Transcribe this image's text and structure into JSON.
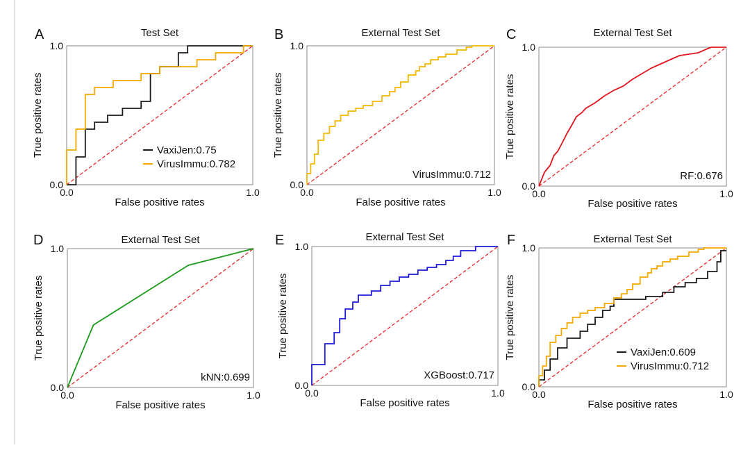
{
  "chart_data": [
    {
      "panel": "A",
      "type": "line",
      "title": "Test Set",
      "xlabel": "False positive rates",
      "ylabel": "True positive rates",
      "xlim": [
        0,
        1
      ],
      "ylim": [
        0,
        1
      ],
      "x_ticks": [
        "0.0",
        "1.0"
      ],
      "y_ticks": [
        "0.0",
        "1.0"
      ],
      "legend_position": "bottom-right",
      "diagonal_color": "#e8262a",
      "series": [
        {
          "name": "VaxiJen:0.75",
          "color": "#1a1a1a",
          "x": [
            0,
            0.05,
            0.05,
            0.1,
            0.1,
            0.15,
            0.15,
            0.22,
            0.22,
            0.3,
            0.3,
            0.4,
            0.4,
            0.45,
            0.45,
            0.5,
            0.5,
            0.6,
            0.6,
            0.6,
            0.65,
            0.65,
            1
          ],
          "y": [
            0,
            0,
            0.2,
            0.2,
            0.4,
            0.4,
            0.45,
            0.45,
            0.5,
            0.5,
            0.55,
            0.55,
            0.6,
            0.6,
            0.8,
            0.8,
            0.85,
            0.85,
            0.9,
            0.95,
            0.95,
            1,
            1
          ]
        },
        {
          "name": "VirusImmu:0.782",
          "color": "#f5a800",
          "x": [
            0,
            0,
            0.05,
            0.05,
            0.1,
            0.1,
            0.15,
            0.15,
            0.25,
            0.25,
            0.4,
            0.4,
            0.5,
            0.5,
            0.7,
            0.7,
            0.8,
            0.8,
            0.95,
            0.95,
            1
          ],
          "y": [
            0,
            0.25,
            0.25,
            0.4,
            0.4,
            0.65,
            0.65,
            0.7,
            0.7,
            0.75,
            0.75,
            0.8,
            0.8,
            0.85,
            0.85,
            0.9,
            0.9,
            0.95,
            0.95,
            1,
            1
          ]
        }
      ]
    },
    {
      "panel": "B",
      "type": "line",
      "title": "External Test Set",
      "xlabel": "False positive rates",
      "ylabel": "True positive rates",
      "xlim": [
        0,
        1
      ],
      "ylim": [
        0,
        1
      ],
      "x_ticks": [
        "0.0",
        "1.0"
      ],
      "y_ticks": [
        "0.0",
        "1.0"
      ],
      "annotation": "VirusImmu:0.712",
      "diagonal_color": "#e8262a",
      "series": [
        {
          "name": "",
          "color": "#f5b800",
          "x": [
            0,
            0,
            0.02,
            0.02,
            0.04,
            0.04,
            0.06,
            0.06,
            0.09,
            0.09,
            0.12,
            0.12,
            0.15,
            0.15,
            0.18,
            0.18,
            0.22,
            0.22,
            0.26,
            0.26,
            0.3,
            0.3,
            0.35,
            0.35,
            0.4,
            0.4,
            0.44,
            0.44,
            0.47,
            0.47,
            0.5,
            0.5,
            0.54,
            0.54,
            0.58,
            0.58,
            0.6,
            0.6,
            0.63,
            0.63,
            0.66,
            0.66,
            0.7,
            0.7,
            0.74,
            0.74,
            0.8,
            0.8,
            0.85,
            0.85,
            0.88,
            0.88,
            1
          ],
          "y": [
            0,
            0.08,
            0.08,
            0.15,
            0.15,
            0.22,
            0.22,
            0.32,
            0.32,
            0.37,
            0.37,
            0.42,
            0.42,
            0.46,
            0.46,
            0.5,
            0.5,
            0.53,
            0.53,
            0.55,
            0.55,
            0.57,
            0.57,
            0.6,
            0.6,
            0.64,
            0.64,
            0.67,
            0.67,
            0.7,
            0.7,
            0.74,
            0.74,
            0.79,
            0.79,
            0.82,
            0.82,
            0.85,
            0.85,
            0.87,
            0.87,
            0.9,
            0.9,
            0.92,
            0.92,
            0.94,
            0.94,
            0.97,
            0.97,
            0.99,
            0.99,
            1,
            1
          ]
        }
      ]
    },
    {
      "panel": "C",
      "type": "line",
      "title": "External Test Set",
      "xlabel": "False positive rates",
      "ylabel": "True positive rates",
      "xlim": [
        0,
        1
      ],
      "ylim": [
        0,
        1
      ],
      "x_ticks": [
        "0.0",
        "1.0"
      ],
      "y_ticks": [
        "0.0",
        "1.0"
      ],
      "annotation": "RF:0.676",
      "diagonal_color": "#e8262a",
      "series": [
        {
          "name": "",
          "color": "#e0141e",
          "x": [
            0,
            0.03,
            0.06,
            0.08,
            0.1,
            0.12,
            0.15,
            0.18,
            0.2,
            0.23,
            0.25,
            0.3,
            0.35,
            0.4,
            0.45,
            0.5,
            0.55,
            0.6,
            0.65,
            0.7,
            0.75,
            0.8,
            0.85,
            0.9,
            0.92,
            1
          ],
          "y": [
            0,
            0.1,
            0.15,
            0.22,
            0.25,
            0.3,
            0.38,
            0.45,
            0.5,
            0.53,
            0.56,
            0.6,
            0.65,
            0.69,
            0.72,
            0.77,
            0.81,
            0.85,
            0.88,
            0.91,
            0.94,
            0.95,
            0.96,
            0.99,
            1,
            1
          ]
        }
      ]
    },
    {
      "panel": "D",
      "type": "line",
      "title": "External Test Set",
      "xlabel": "False positive rates",
      "ylabel": "True positive rates",
      "xlim": [
        0,
        1
      ],
      "ylim": [
        0,
        1
      ],
      "x_ticks": [
        "0.0",
        "1.0"
      ],
      "y_ticks": [
        "0.0",
        "1.0"
      ],
      "annotation": "kNN:0.699",
      "diagonal_color": "#e8262a",
      "series": [
        {
          "name": "",
          "color": "#1a9a1a",
          "x": [
            0,
            0.14,
            0.65,
            1
          ],
          "y": [
            0,
            0.45,
            0.88,
            1
          ]
        }
      ]
    },
    {
      "panel": "E",
      "type": "line",
      "title": "External Test Set",
      "xlabel": "False positive rates",
      "ylabel": "True positive rates",
      "xlim": [
        0,
        1
      ],
      "ylim": [
        0,
        1
      ],
      "x_ticks": [
        "0.0",
        "1.0"
      ],
      "y_ticks": [
        "0.0",
        "1.0"
      ],
      "annotation": "XGBoost:0.717",
      "diagonal_color": "#e8262a",
      "series": [
        {
          "name": "",
          "color": "#1f18d8",
          "x": [
            0,
            0,
            0.07,
            0.07,
            0.12,
            0.12,
            0.15,
            0.15,
            0.18,
            0.18,
            0.22,
            0.22,
            0.25,
            0.25,
            0.32,
            0.32,
            0.37,
            0.37,
            0.42,
            0.42,
            0.47,
            0.47,
            0.52,
            0.52,
            0.57,
            0.57,
            0.62,
            0.62,
            0.67,
            0.67,
            0.72,
            0.72,
            0.76,
            0.76,
            0.8,
            0.8,
            0.88,
            0.88,
            1
          ],
          "y": [
            0,
            0.15,
            0.15,
            0.3,
            0.3,
            0.38,
            0.38,
            0.48,
            0.48,
            0.55,
            0.55,
            0.6,
            0.6,
            0.65,
            0.65,
            0.68,
            0.68,
            0.72,
            0.72,
            0.75,
            0.75,
            0.78,
            0.78,
            0.8,
            0.8,
            0.83,
            0.83,
            0.85,
            0.85,
            0.87,
            0.87,
            0.9,
            0.9,
            0.93,
            0.93,
            0.97,
            0.97,
            1,
            1
          ]
        }
      ]
    },
    {
      "panel": "F",
      "type": "line",
      "title": "External Test Set",
      "xlabel": "False positive rates",
      "ylabel": "True positive rates",
      "xlim": [
        0,
        1
      ],
      "ylim": [
        0,
        1
      ],
      "x_ticks": [
        "0.0",
        "1.0"
      ],
      "y_ticks": [
        "0.0",
        "1.0"
      ],
      "legend_position": "bottom-right",
      "diagonal_color": "#e8262a",
      "series": [
        {
          "name": "VaxiJen:0.609",
          "color": "#1a1a1a",
          "x": [
            0,
            0,
            0.03,
            0.03,
            0.06,
            0.06,
            0.1,
            0.1,
            0.15,
            0.15,
            0.22,
            0.22,
            0.26,
            0.26,
            0.3,
            0.3,
            0.34,
            0.34,
            0.38,
            0.38,
            0.4,
            0.4,
            0.57,
            0.57,
            0.66,
            0.66,
            0.72,
            0.72,
            0.78,
            0.78,
            0.84,
            0.84,
            0.9,
            0.9,
            0.95,
            0.95,
            0.97,
            0.97,
            1
          ],
          "y": [
            0,
            0.05,
            0.05,
            0.12,
            0.12,
            0.2,
            0.2,
            0.28,
            0.28,
            0.35,
            0.35,
            0.4,
            0.4,
            0.45,
            0.45,
            0.5,
            0.5,
            0.55,
            0.55,
            0.58,
            0.58,
            0.63,
            0.63,
            0.65,
            0.65,
            0.68,
            0.68,
            0.72,
            0.72,
            0.75,
            0.75,
            0.78,
            0.78,
            0.83,
            0.83,
            0.9,
            0.9,
            0.98,
            0.98
          ]
        },
        {
          "name": "VirusImmu:0.712",
          "color": "#f5a800",
          "x": [
            0,
            0,
            0.02,
            0.02,
            0.04,
            0.04,
            0.06,
            0.06,
            0.09,
            0.09,
            0.12,
            0.12,
            0.15,
            0.15,
            0.18,
            0.18,
            0.22,
            0.22,
            0.26,
            0.26,
            0.3,
            0.3,
            0.35,
            0.35,
            0.4,
            0.4,
            0.44,
            0.44,
            0.47,
            0.47,
            0.5,
            0.5,
            0.54,
            0.54,
            0.58,
            0.58,
            0.6,
            0.6,
            0.63,
            0.63,
            0.66,
            0.66,
            0.7,
            0.7,
            0.74,
            0.74,
            0.8,
            0.8,
            0.85,
            0.85,
            0.88,
            0.88,
            1
          ],
          "y": [
            0,
            0.08,
            0.08,
            0.15,
            0.15,
            0.22,
            0.22,
            0.32,
            0.32,
            0.37,
            0.37,
            0.42,
            0.42,
            0.46,
            0.46,
            0.5,
            0.5,
            0.53,
            0.53,
            0.55,
            0.55,
            0.57,
            0.57,
            0.6,
            0.6,
            0.64,
            0.64,
            0.67,
            0.67,
            0.7,
            0.7,
            0.74,
            0.74,
            0.79,
            0.79,
            0.82,
            0.82,
            0.85,
            0.85,
            0.87,
            0.87,
            0.9,
            0.9,
            0.92,
            0.92,
            0.94,
            0.94,
            0.97,
            0.97,
            0.99,
            0.99,
            1,
            1
          ]
        }
      ]
    }
  ]
}
